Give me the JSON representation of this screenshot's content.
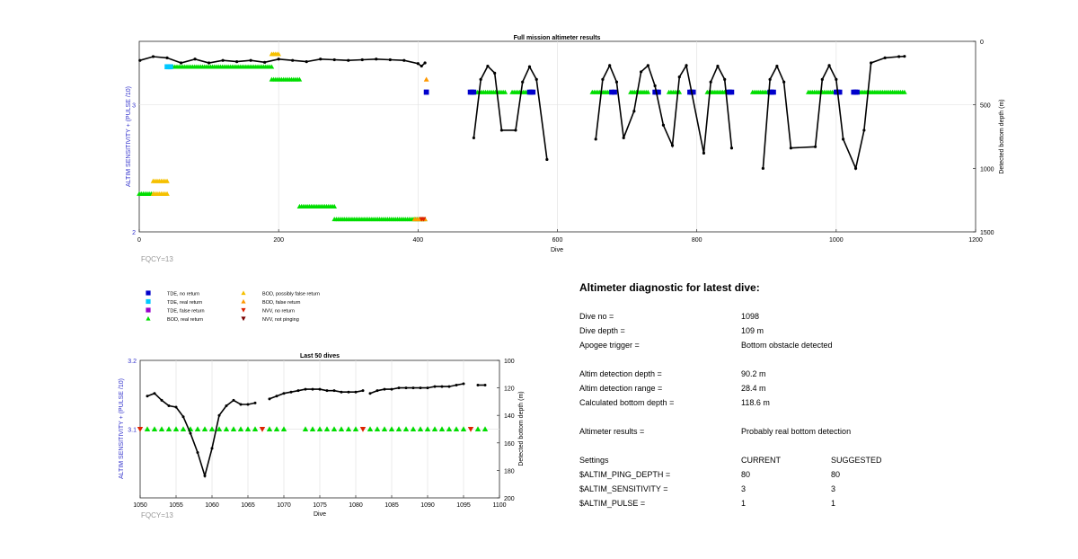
{
  "chart_data": [
    {
      "type": "scatter",
      "title": "Full mission altimeter results",
      "xlabel": "Dive",
      "ylabel_left": "ALTIM SENSITIVITY + (PULSE /10)",
      "ylabel_right": "Detected bottom depth (m)",
      "xlim": [
        0,
        1200
      ],
      "ylim_left": [
        2,
        3.5
      ],
      "ylim_right": [
        1500,
        0
      ],
      "x_ticks": [
        "0",
        "200",
        "400",
        "600",
        "800",
        "1000",
        "1200"
      ],
      "y_ticks_left": [
        "2",
        "3"
      ],
      "y_ticks_right": [
        "0",
        "500",
        "1000",
        "1500"
      ],
      "grid": true,
      "annotation": "FQCY=13",
      "depth_series": {
        "name": "Detected bottom depth",
        "points": [
          [
            1,
            150
          ],
          [
            20,
            120
          ],
          [
            40,
            130
          ],
          [
            60,
            170
          ],
          [
            80,
            140
          ],
          [
            100,
            170
          ],
          [
            120,
            150
          ],
          [
            140,
            160
          ],
          [
            160,
            150
          ],
          [
            180,
            165
          ],
          [
            200,
            140
          ],
          [
            220,
            150
          ],
          [
            240,
            160
          ],
          [
            260,
            140
          ],
          [
            280,
            145
          ],
          [
            300,
            150
          ],
          [
            320,
            145
          ],
          [
            340,
            140
          ],
          [
            360,
            145
          ],
          [
            380,
            150
          ],
          [
            400,
            175
          ],
          [
            405,
            195
          ],
          [
            410,
            170
          ],
          [
            480,
            760
          ],
          [
            490,
            300
          ],
          [
            500,
            195
          ],
          [
            510,
            250
          ],
          [
            520,
            700
          ],
          [
            540,
            700
          ],
          [
            550,
            320
          ],
          [
            560,
            200
          ],
          [
            570,
            300
          ],
          [
            585,
            930
          ],
          [
            655,
            770
          ],
          [
            665,
            300
          ],
          [
            675,
            190
          ],
          [
            685,
            320
          ],
          [
            695,
            760
          ],
          [
            710,
            550
          ],
          [
            720,
            240
          ],
          [
            730,
            190
          ],
          [
            740,
            350
          ],
          [
            752,
            660
          ],
          [
            765,
            820
          ],
          [
            775,
            280
          ],
          [
            785,
            190
          ],
          [
            810,
            880
          ],
          [
            820,
            320
          ],
          [
            830,
            195
          ],
          [
            840,
            300
          ],
          [
            850,
            840
          ],
          [
            895,
            1000
          ],
          [
            905,
            300
          ],
          [
            915,
            195
          ],
          [
            925,
            320
          ],
          [
            935,
            840
          ],
          [
            970,
            830
          ],
          [
            980,
            300
          ],
          [
            990,
            190
          ],
          [
            1000,
            300
          ],
          [
            1010,
            770
          ],
          [
            1028,
            1000
          ],
          [
            1040,
            700
          ],
          [
            1050,
            170
          ],
          [
            1070,
            130
          ],
          [
            1090,
            120
          ],
          [
            1098,
            118
          ]
        ]
      },
      "categories": [
        {
          "name": "BOD, real return",
          "marker": "triangle-up",
          "color": "#00dd00",
          "spans": [
            {
              "x": [
                40,
                190
              ],
              "y": 3.3
            },
            {
              "x": [
                190,
                230
              ],
              "y": 3.2
            },
            {
              "x": [
                0,
                20
              ],
              "y": 2.3
            },
            {
              "x": [
                230,
                280
              ],
              "y": 2.2
            },
            {
              "x": [
                280,
                410
              ],
              "y": 2.1
            },
            {
              "x": [
                480,
                525
              ],
              "y": 3.1
            },
            {
              "x": [
                535,
                565
              ],
              "y": 3.1
            },
            {
              "x": [
                650,
                680
              ],
              "y": 3.1
            },
            {
              "x": [
                705,
                730
              ],
              "y": 3.1
            },
            {
              "x": [
                760,
                775
              ],
              "y": 3.1
            },
            {
              "x": [
                815,
                840
              ],
              "y": 3.1
            },
            {
              "x": [
                880,
                910
              ],
              "y": 3.1
            },
            {
              "x": [
                960,
                1000
              ],
              "y": 3.1
            },
            {
              "x": [
                1030,
                1098
              ],
              "y": 3.1
            }
          ]
        },
        {
          "name": "BOD, possibly false return",
          "marker": "triangle-up",
          "color": "#f5c000",
          "spans": [
            {
              "x": [
                190,
                200
              ],
              "y": 3.4
            },
            {
              "x": [
                20,
                40
              ],
              "y": 2.4
            },
            {
              "x": [
                20,
                40
              ],
              "y": 2.3
            }
          ]
        },
        {
          "name": "BOD, false return",
          "marker": "triangle-up",
          "color": "#ff9900",
          "spans": [
            {
              "x": [
                412,
                412
              ],
              "y": 3.2
            },
            {
              "x": [
                395,
                410
              ],
              "y": 2.1
            }
          ]
        },
        {
          "name": "TDE, no return",
          "marker": "square",
          "color": "#0000cc",
          "spans": [
            {
              "x": [
                412,
                412
              ],
              "y": 3.1
            },
            {
              "x": [
                475,
                480
              ],
              "y": 3.1
            },
            {
              "x": [
                560,
                565
              ],
              "y": 3.1
            },
            {
              "x": [
                678,
                682
              ],
              "y": 3.1
            },
            {
              "x": [
                740,
                745
              ],
              "y": 3.1
            },
            {
              "x": [
                790,
                795
              ],
              "y": 3.1
            },
            {
              "x": [
                845,
                850
              ],
              "y": 3.1
            },
            {
              "x": [
                905,
                910
              ],
              "y": 3.1
            },
            {
              "x": [
                1000,
                1005
              ],
              "y": 3.1
            },
            {
              "x": [
                1025,
                1030
              ],
              "y": 3.1
            }
          ]
        },
        {
          "name": "TDE, real return",
          "marker": "square",
          "color": "#00c8ff",
          "spans": [
            {
              "x": [
                40,
                45
              ],
              "y": 3.3
            }
          ]
        },
        {
          "name": "NVV, no return",
          "marker": "triangle-down",
          "color": "#dd2200",
          "spans": [
            {
              "x": [
                405,
                408
              ],
              "y": 2.1
            }
          ]
        }
      ]
    },
    {
      "type": "scatter",
      "title": "Last 50 dives",
      "xlabel": "Dive",
      "ylabel_left": "ALTIM SENSITIVITY + (PULSE /10)",
      "ylabel_right": "Detected bottom depth (m)",
      "xlim": [
        1050,
        1100
      ],
      "ylim_left": [
        3,
        3.2
      ],
      "ylim_right": [
        200,
        100
      ],
      "x_ticks": [
        "1050",
        "1055",
        "1060",
        "1065",
        "1070",
        "1075",
        "1080",
        "1085",
        "1090",
        "1095",
        "1100"
      ],
      "y_ticks_left": [
        "3.1",
        "3.2"
      ],
      "y_ticks_right": [
        "100",
        "120",
        "140",
        "160",
        "180",
        "200"
      ],
      "grid": true,
      "annotation": "FQCY=13",
      "depth_segments": [
        [
          [
            1051,
            126
          ],
          [
            1052,
            124
          ],
          [
            1053,
            129
          ],
          [
            1054,
            133
          ],
          [
            1055,
            134
          ],
          [
            1056,
            141
          ],
          [
            1057,
            153
          ],
          [
            1058,
            167
          ],
          [
            1059,
            184
          ],
          [
            1060,
            164
          ],
          [
            1061,
            140
          ],
          [
            1062,
            133
          ],
          [
            1063,
            129
          ],
          [
            1064,
            132
          ],
          [
            1065,
            132
          ],
          [
            1066,
            131
          ]
        ],
        [
          [
            1068,
            128
          ],
          [
            1069,
            126
          ],
          [
            1070,
            124
          ],
          [
            1071,
            123
          ],
          [
            1072,
            122
          ],
          [
            1073,
            121
          ],
          [
            1074,
            121
          ],
          [
            1075,
            121
          ],
          [
            1076,
            122
          ],
          [
            1077,
            122
          ],
          [
            1078,
            123
          ],
          [
            1079,
            123
          ],
          [
            1080,
            123
          ],
          [
            1081,
            122
          ]
        ],
        [
          [
            1082,
            124
          ],
          [
            1083,
            122
          ],
          [
            1084,
            121
          ],
          [
            1085,
            121
          ],
          [
            1086,
            120
          ],
          [
            1087,
            120
          ],
          [
            1088,
            120
          ],
          [
            1089,
            120
          ],
          [
            1090,
            120
          ],
          [
            1091,
            119
          ],
          [
            1092,
            119
          ],
          [
            1093,
            119
          ],
          [
            1094,
            118
          ],
          [
            1095,
            117
          ]
        ],
        [
          [
            1097,
            118
          ],
          [
            1098,
            118
          ]
        ]
      ],
      "altimeter_level": 3.1,
      "bod_real_dives": [
        1051,
        1052,
        1053,
        1054,
        1055,
        1056,
        1057,
        1058,
        1059,
        1060,
        1061,
        1062,
        1063,
        1064,
        1065,
        1066,
        1068,
        1069,
        1070,
        1073,
        1074,
        1075,
        1076,
        1077,
        1078,
        1079,
        1080,
        1082,
        1083,
        1084,
        1085,
        1086,
        1087,
        1088,
        1089,
        1090,
        1091,
        1092,
        1093,
        1094,
        1095,
        1097,
        1098
      ],
      "nvv_no_return_dives": [
        1050,
        1067,
        1081,
        1096
      ]
    }
  ],
  "legend": {
    "items": [
      {
        "label": "TDE, no return",
        "marker": "square",
        "color": "#0000cc"
      },
      {
        "label": "TDE, real return",
        "marker": "square",
        "color": "#00c8ff"
      },
      {
        "label": "TDE, false return",
        "marker": "square",
        "color": "#9900cc"
      },
      {
        "label": "BOD, real return",
        "marker": "triangle-up",
        "color": "#00dd00"
      },
      {
        "label": "BOD, possibly false return",
        "marker": "triangle-up",
        "color": "#f5c000"
      },
      {
        "label": "BOD, false return",
        "marker": "triangle-up",
        "color": "#ff9900"
      },
      {
        "label": "NVV, no return",
        "marker": "triangle-down",
        "color": "#dd2200"
      },
      {
        "label": "NVV, not pinging",
        "marker": "triangle-down",
        "color": "#770000"
      }
    ]
  },
  "diagnostic": {
    "title": "Altimeter diagnostic for latest dive:",
    "dive_no": {
      "label": "Dive no =",
      "value": "1098"
    },
    "dive_depth": {
      "label": "Dive depth =",
      "value": "109 m"
    },
    "apogee_trigger": {
      "label": "Apogee trigger =",
      "value": "Bottom obstacle detected"
    },
    "altim_detection_depth": {
      "label": "Altim detection depth =",
      "value": "90.2 m"
    },
    "altim_detection_range": {
      "label": "Altim detection range =",
      "value": "28.4 m"
    },
    "calculated_bottom_depth": {
      "label": "Calculated bottom depth =",
      "value": "118.6 m"
    },
    "altimeter_results": {
      "label": "Altimeter results =",
      "value": "Probably real bottom detection"
    },
    "settings": {
      "header": {
        "label": "Settings",
        "current": "CURRENT",
        "suggested": "SUGGESTED"
      },
      "rows": [
        {
          "label": "$ALTIM_PING_DEPTH =",
          "current": "80",
          "suggested": "80"
        },
        {
          "label": "$ALTIM_SENSITIVITY =",
          "current": "3",
          "suggested": "3"
        },
        {
          "label": "$ALTIM_PULSE =",
          "current": "1",
          "suggested": "1"
        }
      ]
    }
  }
}
